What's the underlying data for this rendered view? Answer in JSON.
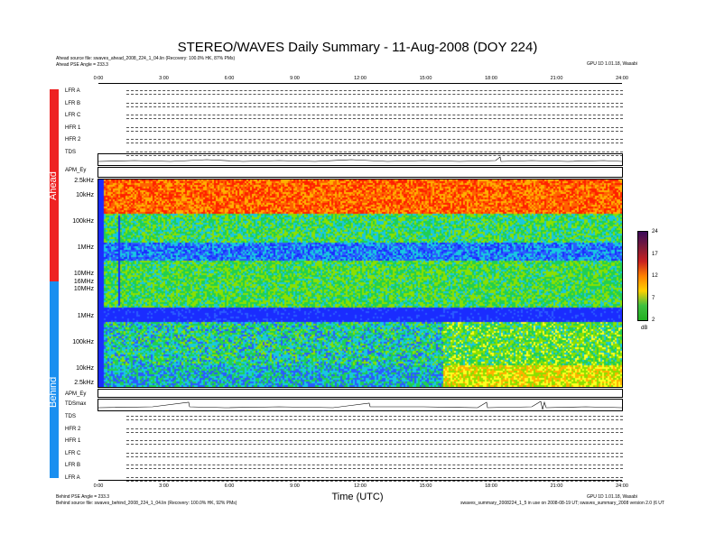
{
  "title": "STEREO/WAVES Daily Summary - 11-Aug-2008 (DOY 224)",
  "header": {
    "ahead_source": "Ahead source file: swaves_ahead_2008_224_1_04.lin (Recovery: 100.0% HK, 87% PMs)",
    "ahead_pse": "Ahead PSE Angle = 233.3",
    "right_note": "GPU 1D 1.01.18, Wasabi"
  },
  "footer": {
    "behind_pse": "Behind PSE Angle = 233.3",
    "behind_source": "Behind source file: swaves_behind_2008_224_1_04.lin (Recovery: 100.0% HK, 92% PMs)",
    "right_note1": "GPU 1D 1.01.18, Wasabi",
    "right_note2": "swaves_summary_2008224_1_5 in use on 2008-08-19 UT; swaves_summary_2008 version 2.0 (6 UT"
  },
  "xaxis": {
    "ticks": [
      "0:00",
      "3:00",
      "6:00",
      "9:00",
      "12:00",
      "15:00",
      "18:00",
      "21:00",
      "24:00"
    ],
    "label": "Time (UTC)"
  },
  "side_labels": {
    "ahead": "Ahead",
    "behind": "Behind"
  },
  "ahead_rows": [
    "LFR A",
    "LFR B",
    "LFR C",
    "HFR 1",
    "HFR 2",
    "TDS",
    "TDSmax"
  ],
  "behind_rows": [
    "TDS",
    "HFR 2",
    "HFR 1",
    "LFR C",
    "LFR B",
    "LFR A"
  ],
  "ahead_aux_label": "APM_Ey",
  "behind_aux_label": "APM_Ey",
  "behind_tdsmax_label": "TDSmax",
  "colorbar": {
    "ticks": [
      "24",
      "17",
      "12",
      "7",
      "2"
    ],
    "unit": "dB",
    "range": [
      2,
      24
    ]
  },
  "chart_data": {
    "type": "heatmap",
    "title": "STEREO/WAVES Daily Summary - 11-Aug-2008 (DOY 224)",
    "xlabel": "Time (UTC)",
    "xlim": [
      "0:00",
      "24:00"
    ],
    "panels": [
      {
        "name": "Ahead",
        "y_ticks": [
          "2.5kHz",
          "10kHz",
          "100kHz",
          "1MHz",
          "10MHz",
          "16MHz"
        ]
      },
      {
        "name": "Behind",
        "y_ticks": [
          "10MHz",
          "1MHz",
          "100kHz",
          "10kHz",
          "2.5kHz"
        ]
      }
    ],
    "colorbar_range_dB": [
      2,
      24
    ],
    "colorbar_ticks": [
      24,
      17,
      12,
      7,
      2
    ]
  }
}
